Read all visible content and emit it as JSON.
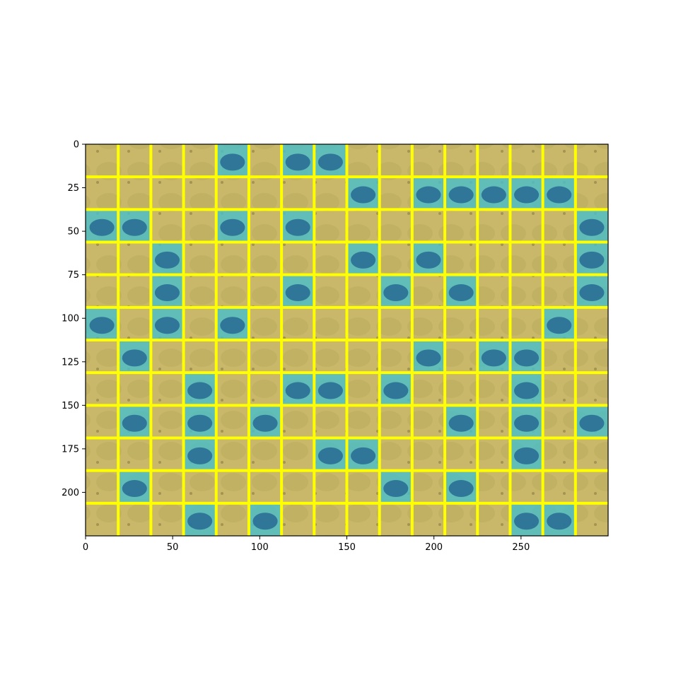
{
  "chart_data": {
    "type": "heatmap",
    "title": "",
    "xlabel": "",
    "ylabel": "",
    "xlim": [
      0,
      300
    ],
    "ylim": [
      225,
      0
    ],
    "x_ticks": [
      "0",
      "50",
      "100",
      "150",
      "200",
      "250"
    ],
    "x_tick_values": [
      0,
      50,
      100,
      150,
      200,
      250
    ],
    "y_ticks": [
      "0",
      "25",
      "50",
      "75",
      "100",
      "125",
      "150",
      "175",
      "200"
    ],
    "y_tick_values": [
      0,
      25,
      50,
      75,
      100,
      125,
      150,
      175,
      200
    ],
    "grid_columns": 16,
    "grid_rows": 12,
    "grid_line_color": "#ffff00",
    "highlight_color": "#4dbdc4",
    "background_color": "#c9b86a",
    "highlighted_cells": [
      [
        0,
        4
      ],
      [
        0,
        6
      ],
      [
        0,
        7
      ],
      [
        1,
        8
      ],
      [
        1,
        10
      ],
      [
        1,
        11
      ],
      [
        1,
        12
      ],
      [
        1,
        13
      ],
      [
        1,
        14
      ],
      [
        2,
        0
      ],
      [
        2,
        1
      ],
      [
        2,
        4
      ],
      [
        2,
        6
      ],
      [
        2,
        15
      ],
      [
        3,
        2
      ],
      [
        3,
        8
      ],
      [
        3,
        10
      ],
      [
        3,
        15
      ],
      [
        4,
        2
      ],
      [
        4,
        6
      ],
      [
        4,
        9
      ],
      [
        4,
        11
      ],
      [
        4,
        15
      ],
      [
        5,
        0
      ],
      [
        5,
        2
      ],
      [
        5,
        4
      ],
      [
        5,
        14
      ],
      [
        6,
        1
      ],
      [
        6,
        10
      ],
      [
        6,
        12
      ],
      [
        6,
        13
      ],
      [
        7,
        3
      ],
      [
        7,
        6
      ],
      [
        7,
        7
      ],
      [
        7,
        9
      ],
      [
        7,
        13
      ],
      [
        8,
        1
      ],
      [
        8,
        3
      ],
      [
        8,
        5
      ],
      [
        8,
        11
      ],
      [
        8,
        13
      ],
      [
        8,
        15
      ],
      [
        9,
        3
      ],
      [
        9,
        7
      ],
      [
        9,
        8
      ],
      [
        9,
        13
      ],
      [
        10,
        1
      ],
      [
        10,
        9
      ],
      [
        10,
        11
      ],
      [
        11,
        3
      ],
      [
        11,
        5
      ],
      [
        11,
        13
      ],
      [
        11,
        14
      ]
    ]
  }
}
